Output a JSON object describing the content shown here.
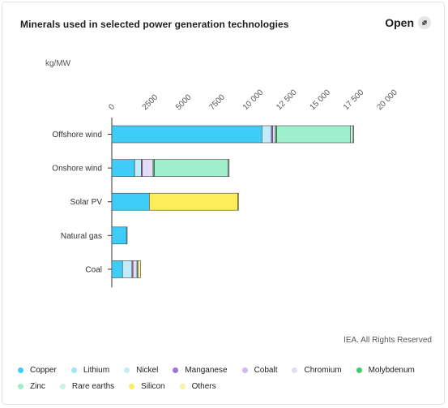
{
  "header": {
    "title": "Minerals used in selected power generation technologies",
    "open_label": "Open"
  },
  "source": "IEA. All Rights Reserved",
  "icons": {
    "open": "external-link-icon"
  },
  "chart_data": {
    "type": "bar",
    "orientation": "horizontal",
    "stacked": true,
    "unit_label": "kg/MW",
    "categories": [
      "Offshore wind",
      "Onshore wind",
      "Solar PV",
      "Natural gas",
      "Coal"
    ],
    "xlim": [
      0,
      20000
    ],
    "x_ticks": [
      "0",
      "2500",
      "5000",
      "7500",
      "10 000",
      "12 500",
      "15 000",
      "17 500",
      "20 000"
    ],
    "x_tick_values": [
      0,
      2500,
      5000,
      7500,
      10000,
      12500,
      15000,
      17500,
      20000
    ],
    "series": [
      {
        "name": "Copper",
        "color": "#3fcdf7",
        "values": [
          11200,
          1700,
          2800,
          1100,
          800
        ]
      },
      {
        "name": "Lithium",
        "color": "#a4e3f6",
        "values": [
          0,
          0,
          0,
          0,
          0
        ]
      },
      {
        "name": "Nickel",
        "color": "#c4ecf8",
        "values": [
          700,
          500,
          0,
          0,
          700
        ]
      },
      {
        "name": "Manganese",
        "color": "#9a74e0",
        "values": [
          100,
          80,
          0,
          0,
          80
        ]
      },
      {
        "name": "Cobalt",
        "color": "#cfb9f0",
        "values": [
          0,
          0,
          0,
          0,
          0
        ]
      },
      {
        "name": "Chromium",
        "color": "#e3dbf7",
        "values": [
          200,
          800,
          0,
          0,
          300
        ]
      },
      {
        "name": "Molybdenum",
        "color": "#3fcd6e",
        "values": [
          100,
          100,
          0,
          0,
          70
        ]
      },
      {
        "name": "Zinc",
        "color": "#9eefcb",
        "values": [
          5500,
          5500,
          0,
          0,
          0
        ]
      },
      {
        "name": "Rare earths",
        "color": "#c8f3df",
        "values": [
          200,
          14,
          0,
          0,
          0
        ]
      },
      {
        "name": "Silicon",
        "color": "#fbee58",
        "values": [
          0,
          0,
          6600,
          0,
          0
        ]
      },
      {
        "name": "Others",
        "color": "#fbf1a0",
        "values": [
          50,
          60,
          50,
          16,
          200
        ]
      }
    ],
    "grid": false,
    "legend_position": "bottom"
  }
}
